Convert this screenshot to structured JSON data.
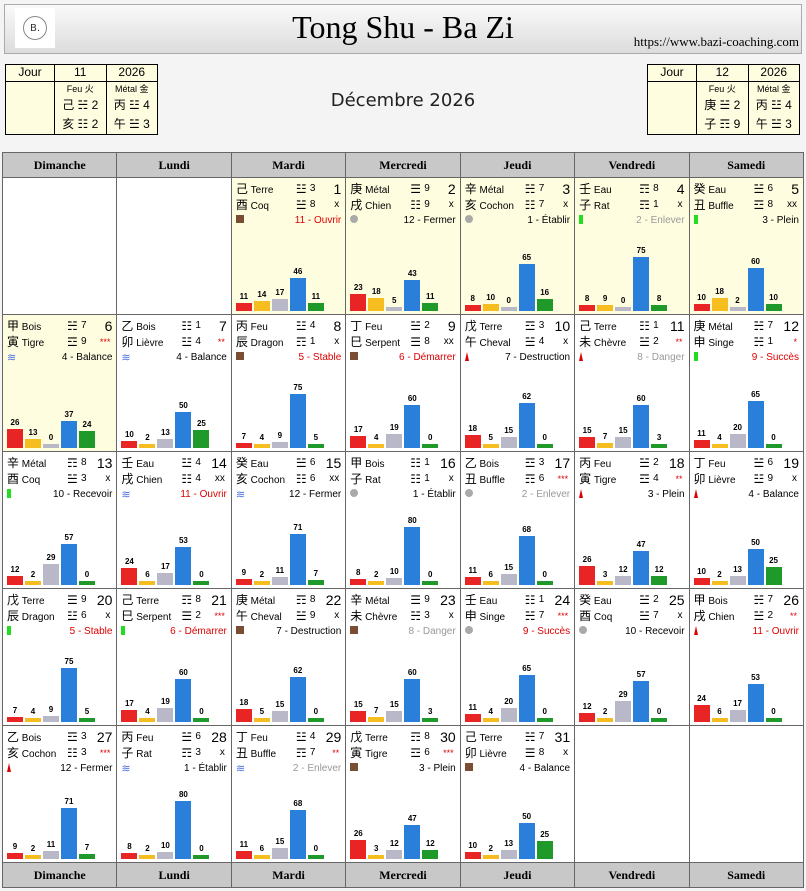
{
  "header": {
    "title": "Tong Shu - Ba Zi",
    "url": "https://www.bazi-coaching.com",
    "logo_text": "B."
  },
  "month_title": "Décembre 2026",
  "mini_left": {
    "label": "Jour",
    "month": "11",
    "year": "2026",
    "col1": {
      "element": "Feu 火",
      "top": "己 ☵ 2",
      "bottom": "亥 ☷ 2"
    },
    "col2": {
      "element": "Métal 金",
      "top": "丙 ☳ 4",
      "bottom": "午 ☱ 3"
    }
  },
  "mini_right": {
    "label": "Jour",
    "month": "12",
    "year": "2026",
    "col1": {
      "element": "Feu 火",
      "top": "庚 ☱ 2",
      "bottom": "子 ☶ 9"
    },
    "col2": {
      "element": "Métal 金",
      "top": "丙 ☳ 4",
      "bottom": "午 ☱ 3"
    }
  },
  "weekdays": [
    "Dimanche",
    "Lundi",
    "Mardi",
    "Mercredi",
    "Jeudi",
    "Vendredi",
    "Samedi"
  ],
  "colors": {
    "bars": [
      "#e82424",
      "#f5bd1f",
      "#b8b8c8",
      "#2a7fdb",
      "#1f9a2a"
    ],
    "officer_red": "#dd0000",
    "officer_gray": "#999999"
  },
  "leading_blanks": 2,
  "days": [
    {
      "d": "1",
      "s": "己",
      "se": "Terre",
      "b": "酉",
      "be": "Coq",
      "t1": "☳",
      "f1": "3",
      "t2": "☱",
      "f2": "8",
      "mk": "x",
      "ind": "brown-square",
      "off": "11 - Ouvrir",
      "oc": "red",
      "bars": [
        11,
        14,
        17,
        46,
        11
      ],
      "hl": true
    },
    {
      "d": "2",
      "s": "庚",
      "se": "Métal",
      "b": "戌",
      "be": "Chien",
      "t1": "☰",
      "f1": "9",
      "t2": "☷",
      "f2": "9",
      "mk": "x",
      "ind": "grey-circle",
      "off": "12 - Fermer",
      "oc": "",
      "bars": [
        23,
        18,
        5,
        43,
        11
      ],
      "hl": true
    },
    {
      "d": "3",
      "s": "辛",
      "se": "Métal",
      "b": "亥",
      "be": "Cochon",
      "t1": "☵",
      "f1": "7",
      "t2": "☷",
      "f2": "7",
      "mk": "x",
      "ind": "grey-circle",
      "off": "1 - Établir",
      "oc": "",
      "bars": [
        8,
        10,
        0,
        65,
        16
      ],
      "hl": true
    },
    {
      "d": "4",
      "s": "壬",
      "se": "Eau",
      "b": "子",
      "be": "Rat",
      "t1": "☶",
      "f1": "8",
      "t2": "☶",
      "f2": "1",
      "mk": "x",
      "ind": "green-bar",
      "off": "2 - Enlever",
      "oc": "gray",
      "bars": [
        8,
        9,
        0,
        75,
        8
      ],
      "hl": true
    },
    {
      "d": "5",
      "s": "癸",
      "se": "Eau",
      "b": "丑",
      "be": "Buffle",
      "t1": "☱",
      "f1": "6",
      "t2": "☲",
      "f2": "8",
      "mk": "xx",
      "ind": "green-bar",
      "off": "3 - Plein",
      "oc": "",
      "bars": [
        10,
        18,
        2,
        60,
        10
      ],
      "hl": true
    },
    {
      "d": "6",
      "s": "甲",
      "se": "Bois",
      "b": "寅",
      "be": "Tigre",
      "t1": "☵",
      "f1": "7",
      "t2": "☲",
      "f2": "9",
      "mk": "***",
      "ind": "blue-waves",
      "off": "4 - Balance",
      "oc": "",
      "bars": [
        26,
        13,
        0,
        37,
        24
      ],
      "hl": true
    },
    {
      "d": "7",
      "s": "乙",
      "se": "Bois",
      "b": "卯",
      "be": "Lièvre",
      "t1": "☷",
      "f1": "1",
      "t2": "☳",
      "f2": "4",
      "mk": "**",
      "ind": "blue-waves",
      "off": "4 - Balance",
      "oc": "",
      "bars": [
        10,
        2,
        13,
        50,
        25
      ]
    },
    {
      "d": "8",
      "s": "丙",
      "se": "Feu",
      "b": "辰",
      "be": "Dragon",
      "t1": "☳",
      "f1": "4",
      "t2": "☶",
      "f2": "1",
      "mk": "x",
      "ind": "brown-square",
      "off": "5 - Stable",
      "oc": "red",
      "bars": [
        7,
        4,
        9,
        75,
        5
      ]
    },
    {
      "d": "9",
      "s": "丁",
      "se": "Feu",
      "b": "巳",
      "be": "Serpent",
      "t1": "☱",
      "f1": "2",
      "t2": "☰",
      "f2": "8",
      "mk": "xx",
      "ind": "brown-square",
      "off": "6 - Démarrer",
      "oc": "red",
      "bars": [
        17,
        4,
        19,
        60,
        0
      ]
    },
    {
      "d": "10",
      "s": "戊",
      "se": "Terre",
      "b": "午",
      "be": "Cheval",
      "t1": "☲",
      "f1": "3",
      "t2": "☱",
      "f2": "4",
      "mk": "x",
      "ind": "red-triangle",
      "off": "7 - Destruction",
      "oc": "",
      "bars": [
        18,
        5,
        15,
        62,
        0
      ]
    },
    {
      "d": "11",
      "s": "己",
      "se": "Terre",
      "b": "未",
      "be": "Chèvre",
      "t1": "☷",
      "f1": "1",
      "t2": "☱",
      "f2": "2",
      "mk": "**",
      "ind": "red-triangle",
      "off": "8 - Danger",
      "oc": "gray",
      "bars": [
        15,
        7,
        15,
        60,
        3
      ]
    },
    {
      "d": "12",
      "s": "庚",
      "se": "Métal",
      "b": "申",
      "be": "Singe",
      "t1": "☵",
      "f1": "7",
      "t2": "☵",
      "f2": "1",
      "mk": "*",
      "ind": "green-bar",
      "off": "9 - Succès",
      "oc": "red",
      "bars": [
        11,
        4,
        20,
        65,
        0
      ]
    },
    {
      "d": "13",
      "s": "辛",
      "se": "Métal",
      "b": "酉",
      "be": "Coq",
      "t1": "☶",
      "f1": "8",
      "t2": "☱",
      "f2": "3",
      "mk": "x",
      "ind": "green-bar",
      "off": "10 - Recevoir",
      "oc": "",
      "bars": [
        12,
        2,
        29,
        57,
        0
      ]
    },
    {
      "d": "14",
      "s": "壬",
      "se": "Eau",
      "b": "戌",
      "be": "Chien",
      "t1": "☳",
      "f1": "4",
      "t2": "☷",
      "f2": "4",
      "mk": "xx",
      "ind": "blue-waves",
      "off": "11 - Ouvrir",
      "oc": "red",
      "bars": [
        24,
        6,
        17,
        53,
        0
      ]
    },
    {
      "d": "15",
      "s": "癸",
      "se": "Eau",
      "b": "亥",
      "be": "Cochon",
      "t1": "☱",
      "f1": "6",
      "t2": "☷",
      "f2": "6",
      "mk": "xx",
      "ind": "blue-waves",
      "off": "12 - Fermer",
      "oc": "",
      "bars": [
        9,
        2,
        11,
        71,
        7
      ]
    },
    {
      "d": "16",
      "s": "甲",
      "se": "Bois",
      "b": "子",
      "be": "Rat",
      "t1": "☷",
      "f1": "1",
      "t2": "☷",
      "f2": "1",
      "mk": "x",
      "ind": "grey-circle",
      "off": "1 - Établir",
      "oc": "",
      "bars": [
        8,
        2,
        10,
        80,
        0
      ]
    },
    {
      "d": "17",
      "s": "乙",
      "se": "Bois",
      "b": "丑",
      "be": "Buffle",
      "t1": "☲",
      "f1": "3",
      "t2": "☶",
      "f2": "6",
      "mk": "***",
      "ind": "grey-circle",
      "off": "2 - Enlever",
      "oc": "gray",
      "bars": [
        11,
        6,
        15,
        68,
        0
      ]
    },
    {
      "d": "18",
      "s": "丙",
      "se": "Feu",
      "b": "寅",
      "be": "Tigre",
      "t1": "☱",
      "f1": "2",
      "t2": "☲",
      "f2": "4",
      "mk": "**",
      "ind": "red-triangle",
      "off": "3 - Plein",
      "oc": "",
      "bars": [
        26,
        3,
        12,
        47,
        12
      ]
    },
    {
      "d": "19",
      "s": "丁",
      "se": "Feu",
      "b": "卯",
      "be": "Lièvre",
      "t1": "☱",
      "f1": "6",
      "t2": "☳",
      "f2": "9",
      "mk": "x",
      "ind": "red-triangle",
      "off": "4 - Balance",
      "oc": "",
      "bars": [
        10,
        2,
        13,
        50,
        25
      ]
    },
    {
      "d": "20",
      "s": "戊",
      "se": "Terre",
      "b": "辰",
      "be": "Dragon",
      "t1": "☰",
      "f1": "9",
      "t2": "☳",
      "f2": "6",
      "mk": "x",
      "ind": "green-bar",
      "off": "5 - Stable",
      "oc": "red",
      "bars": [
        7,
        4,
        9,
        75,
        5
      ]
    },
    {
      "d": "21",
      "s": "己",
      "se": "Terre",
      "b": "巳",
      "be": "Serpent",
      "t1": "☶",
      "f1": "8",
      "t2": "☰",
      "f2": "2",
      "mk": "***",
      "ind": "green-bar",
      "off": "6 - Démarrer",
      "oc": "red",
      "bars": [
        17,
        4,
        19,
        60,
        0
      ]
    },
    {
      "d": "22",
      "s": "庚",
      "se": "Métal",
      "b": "午",
      "be": "Cheval",
      "t1": "☶",
      "f1": "8",
      "t2": "☱",
      "f2": "9",
      "mk": "x",
      "ind": "brown-square",
      "off": "7 - Destruction",
      "oc": "",
      "bars": [
        18,
        5,
        15,
        62,
        0
      ]
    },
    {
      "d": "23",
      "s": "辛",
      "se": "Métal",
      "b": "未",
      "be": "Chèvre",
      "t1": "☰",
      "f1": "9",
      "t2": "☵",
      "f2": "3",
      "mk": "x",
      "ind": "brown-square",
      "off": "8 - Danger",
      "oc": "gray",
      "bars": [
        15,
        7,
        15,
        60,
        3
      ]
    },
    {
      "d": "24",
      "s": "壬",
      "se": "Eau",
      "b": "申",
      "be": "Singe",
      "t1": "☷",
      "f1": "1",
      "t2": "☵",
      "f2": "7",
      "mk": "***",
      "ind": "grey-circle",
      "off": "9 - Succès",
      "oc": "red",
      "bars": [
        11,
        4,
        20,
        65,
        0
      ]
    },
    {
      "d": "25",
      "s": "癸",
      "se": "Eau",
      "b": "酉",
      "be": "Coq",
      "t1": "☱",
      "f1": "2",
      "t2": "☱",
      "f2": "7",
      "mk": "x",
      "ind": "grey-circle",
      "off": "10 - Recevoir",
      "oc": "",
      "bars": [
        12,
        2,
        29,
        57,
        0
      ]
    },
    {
      "d": "26",
      "s": "甲",
      "se": "Bois",
      "b": "戌",
      "be": "Chien",
      "t1": "☵",
      "f1": "7",
      "t2": "☱",
      "f2": "2",
      "mk": "**",
      "ind": "red-triangle",
      "off": "11 - Ouvrir",
      "oc": "red",
      "bars": [
        24,
        6,
        17,
        53,
        0
      ]
    },
    {
      "d": "27",
      "s": "乙",
      "se": "Bois",
      "b": "亥",
      "be": "Cochon",
      "t1": "☲",
      "f1": "3",
      "t2": "☷",
      "f2": "3",
      "mk": "***",
      "ind": "red-triangle",
      "off": "12 - Fermer",
      "oc": "",
      "bars": [
        9,
        2,
        11,
        71,
        7
      ]
    },
    {
      "d": "28",
      "s": "丙",
      "se": "Feu",
      "b": "子",
      "be": "Rat",
      "t1": "☱",
      "f1": "6",
      "t2": "☶",
      "f2": "3",
      "mk": "x",
      "ind": "blue-waves",
      "off": "1 - Établir",
      "oc": "",
      "bars": [
        8,
        2,
        10,
        80,
        0
      ]
    },
    {
      "d": "29",
      "s": "丁",
      "se": "Feu",
      "b": "丑",
      "be": "Buffle",
      "t1": "☳",
      "f1": "4",
      "t2": "☶",
      "f2": "7",
      "mk": "**",
      "ind": "blue-waves",
      "off": "2 - Enlever",
      "oc": "gray",
      "bars": [
        11,
        6,
        15,
        68,
        0
      ]
    },
    {
      "d": "30",
      "s": "戊",
      "se": "Terre",
      "b": "寅",
      "be": "Tigre",
      "t1": "☶",
      "f1": "8",
      "t2": "☲",
      "f2": "6",
      "mk": "***",
      "ind": "brown-square",
      "off": "3 - Plein",
      "oc": "",
      "bars": [
        26,
        3,
        12,
        47,
        12
      ]
    },
    {
      "d": "31",
      "s": "己",
      "se": "Terre",
      "b": "卯",
      "be": "Lièvre",
      "t1": "☵",
      "f1": "7",
      "t2": "☰",
      "f2": "8",
      "mk": "x",
      "ind": "brown-square",
      "off": "4 - Balance",
      "oc": "",
      "bars": [
        10,
        2,
        13,
        50,
        25
      ]
    }
  ]
}
